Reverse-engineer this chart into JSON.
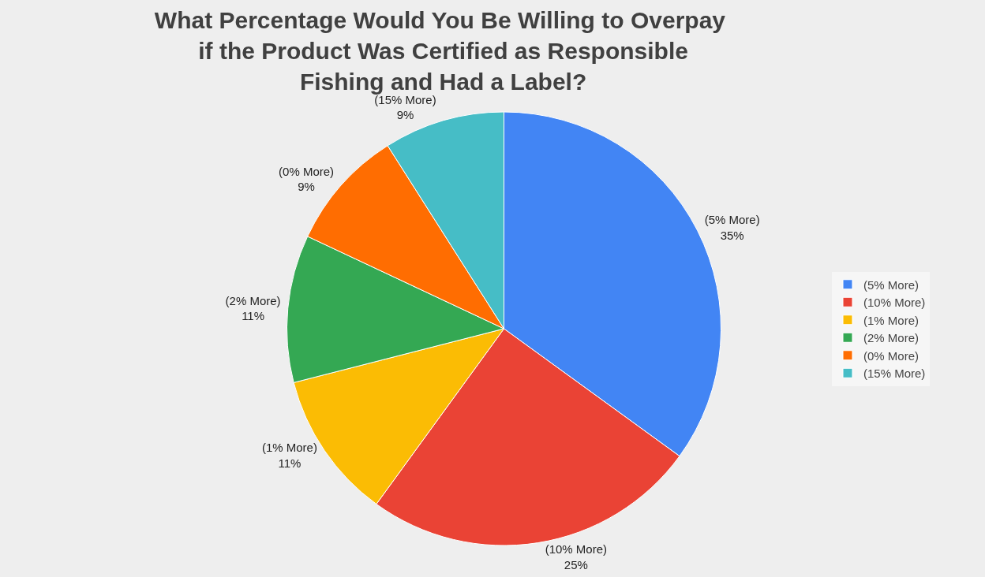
{
  "chart_data": {
    "type": "pie",
    "title": "What Percentage Would You Be Willing to Overpay  if the Product Was Certified as Responsible Fishing and Had a Label?",
    "categories": [
      "(5% More)",
      "(10% More)",
      "(1% More)",
      "(2% More)",
      "(0% More)",
      "(15% More)"
    ],
    "values": [
      35,
      25,
      11,
      11,
      9,
      9
    ],
    "value_labels": [
      "35%",
      "25%",
      "11%",
      "11%",
      "9%",
      "9%"
    ],
    "colors": [
      "#4285f4",
      "#ea4335",
      "#fbbc04",
      "#34a853",
      "#ff6d01",
      "#46bdc6"
    ],
    "legend": "right"
  }
}
